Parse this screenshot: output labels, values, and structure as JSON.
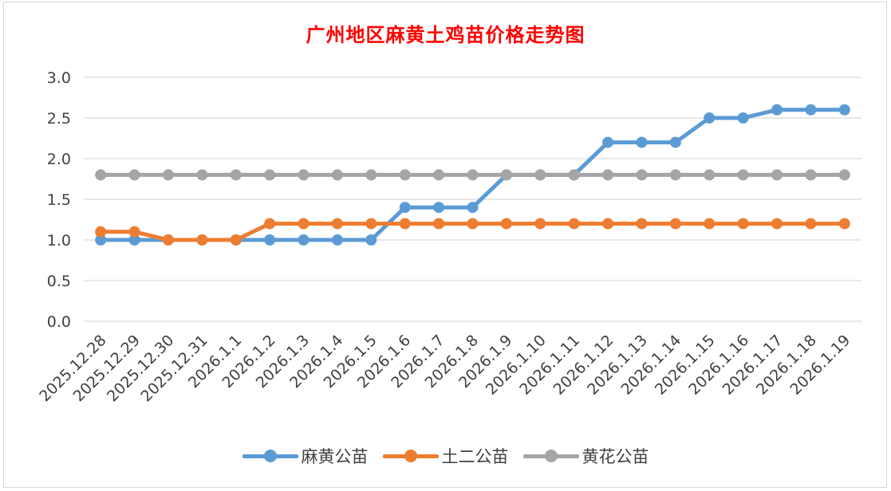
{
  "chart_data": {
    "type": "line",
    "title": "广州地区麻黄土鸡苗价格走势图",
    "x": [
      "2025.12.28",
      "2025.12.29",
      "2025.12.30",
      "2025.12.31",
      "2026.1.1",
      "2026.1.2",
      "2026.1.3",
      "2026.1.4",
      "2026.1.5",
      "2026.1.6",
      "2026.1.7",
      "2026.1.8",
      "2026.1.9",
      "2026.1.10",
      "2026.1.11",
      "2026.1.12",
      "2026.1.13",
      "2026.1.14",
      "2026.1.15",
      "2026.1.16",
      "2026.1.17",
      "2026.1.18",
      "2026.1.19"
    ],
    "ylim": [
      0,
      3.0
    ],
    "yticks": [
      "0.0",
      "0.5",
      "1.0",
      "1.5",
      "2.0",
      "2.5",
      "3.0"
    ],
    "grid": true,
    "legend_position": "bottom",
    "series": [
      {
        "name": "麻黄公苗",
        "color": "#5b9bd5",
        "values": [
          1.0,
          1.0,
          1.0,
          1.0,
          1.0,
          1.0,
          1.0,
          1.0,
          1.0,
          1.4,
          1.4,
          1.4,
          1.8,
          1.8,
          1.8,
          2.2,
          2.2,
          2.2,
          2.5,
          2.5,
          2.6,
          2.6,
          2.6
        ]
      },
      {
        "name": "土二公苗",
        "color": "#ed7d31",
        "values": [
          1.1,
          1.1,
          1.0,
          1.0,
          1.0,
          1.2,
          1.2,
          1.2,
          1.2,
          1.2,
          1.2,
          1.2,
          1.2,
          1.2,
          1.2,
          1.2,
          1.2,
          1.2,
          1.2,
          1.2,
          1.2,
          1.2,
          1.2
        ]
      },
      {
        "name": "黄花公苗",
        "color": "#a5a5a5",
        "values": [
          1.8,
          1.8,
          1.8,
          1.8,
          1.8,
          1.8,
          1.8,
          1.8,
          1.8,
          1.8,
          1.8,
          1.8,
          1.8,
          1.8,
          1.8,
          1.8,
          1.8,
          1.8,
          1.8,
          1.8,
          1.8,
          1.8,
          1.8
        ]
      }
    ]
  }
}
